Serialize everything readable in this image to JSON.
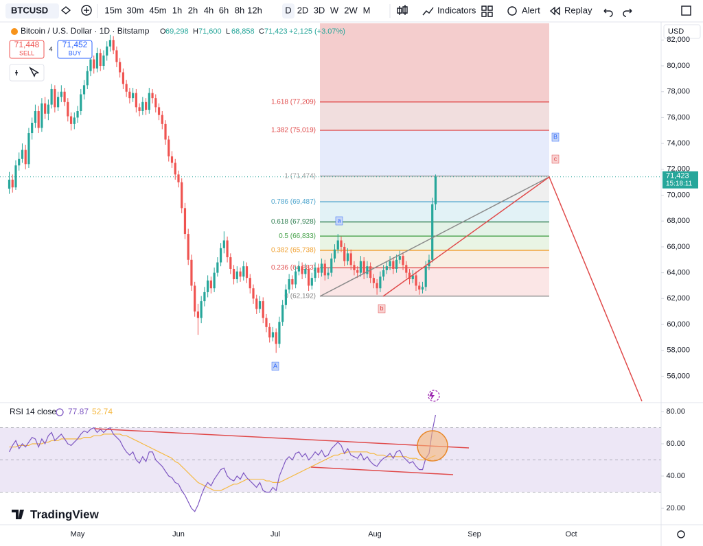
{
  "toolbar": {
    "symbol": "BTCUSD",
    "timeframes": [
      "15m",
      "30m",
      "45m",
      "1h",
      "2h",
      "4h",
      "6h",
      "8h",
      "12h",
      "D",
      "2D",
      "3D",
      "W",
      "2W",
      "M"
    ],
    "active": "D",
    "buttons": [
      "Indicators",
      "Alert",
      "Replay"
    ]
  },
  "legend": {
    "title": "Bitcoin / U.S. Dollar · 1D · Bitstamp",
    "ohlc": [
      {
        "key": "O",
        "value": "69,298"
      },
      {
        "key": "H",
        "value": "71,600"
      },
      {
        "key": "L",
        "value": "68,858"
      },
      {
        "key": "C",
        "value": "71,423"
      }
    ],
    "change": "+2,125 (+3.07%)"
  },
  "trade": {
    "sell_price": "71,448",
    "sell": "SELL",
    "spread": "4",
    "buy_price": "71,452",
    "buy": "BUY"
  },
  "currency": "USD",
  "price_chart": {
    "type": "candlestick",
    "up_color": "#26a69a",
    "down_color": "#ef5350",
    "ylim": [
      54060,
      83290
    ],
    "yticks": [
      {
        "value": 56000,
        "label": "56,000"
      },
      {
        "value": 58000,
        "label": "58,000"
      },
      {
        "value": 60000,
        "label": "60,000"
      },
      {
        "value": 62000,
        "label": "62,000"
      },
      {
        "value": 64000,
        "label": "64,000"
      },
      {
        "value": 66000,
        "label": "66,000"
      },
      {
        "value": 68000,
        "label": "68,000"
      },
      {
        "value": 70000,
        "label": "70,000"
      },
      {
        "value": 72000,
        "label": "72,000"
      },
      {
        "value": 74000,
        "label": "74,000"
      },
      {
        "value": 76000,
        "label": "76,000"
      },
      {
        "value": 78000,
        "label": "78,000"
      },
      {
        "value": 80000,
        "label": "80,000"
      },
      {
        "value": 82000,
        "label": "82,000"
      }
    ],
    "last_price": {
      "value": 71423,
      "label": "71,423",
      "countdown": "15:18:11"
    },
    "candles": [
      [
        70500,
        71800,
        70100,
        71200
      ],
      [
        71200,
        71600,
        70200,
        70600
      ],
      [
        70600,
        72700,
        70400,
        72300
      ],
      [
        72300,
        73300,
        71900,
        72800
      ],
      [
        72800,
        74000,
        72500,
        73500
      ],
      [
        73500,
        73900,
        72000,
        72400
      ],
      [
        72400,
        75200,
        72100,
        74800
      ],
      [
        74800,
        76000,
        74300,
        75600
      ],
      [
        75600,
        77000,
        75200,
        76500
      ],
      [
        76500,
        76900,
        74800,
        75200
      ],
      [
        75200,
        77500,
        74900,
        77100
      ],
      [
        77100,
        77600,
        75900,
        76300
      ],
      [
        76300,
        77400,
        75800,
        77000
      ],
      [
        77000,
        78600,
        76700,
        78200
      ],
      [
        78200,
        78500,
        76400,
        76800
      ],
      [
        76800,
        78000,
        76500,
        77600
      ],
      [
        77600,
        78500,
        77200,
        78000
      ],
      [
        78000,
        78300,
        76900,
        77200
      ],
      [
        77200,
        77500,
        75700,
        76100
      ],
      [
        76100,
        76400,
        75000,
        75500
      ],
      [
        75500,
        76400,
        75100,
        76000
      ],
      [
        76000,
        76900,
        75600,
        76500
      ],
      [
        76500,
        78200,
        76200,
        77800
      ],
      [
        77800,
        78900,
        77400,
        78500
      ],
      [
        78500,
        80000,
        78200,
        79600
      ],
      [
        79600,
        80900,
        79200,
        80500
      ],
      [
        80500,
        80800,
        79400,
        79800
      ],
      [
        79800,
        81400,
        79500,
        81000
      ],
      [
        81000,
        81300,
        79600,
        80000
      ],
      [
        80000,
        81200,
        79700,
        80800
      ],
      [
        80800,
        81900,
        80400,
        81500
      ],
      [
        81500,
        82400,
        81100,
        82000
      ],
      [
        82000,
        82300,
        80900,
        81200
      ],
      [
        81200,
        81500,
        79900,
        80300
      ],
      [
        80300,
        80600,
        79100,
        79500
      ],
      [
        79500,
        79800,
        78200,
        78600
      ],
      [
        78600,
        78900,
        77600,
        78000
      ],
      [
        78000,
        78300,
        77100,
        77500
      ],
      [
        77500,
        78300,
        77200,
        77900
      ],
      [
        77900,
        78200,
        76400,
        76800
      ],
      [
        76800,
        77100,
        76100,
        76500
      ],
      [
        76500,
        77600,
        76200,
        77200
      ],
      [
        77200,
        77500,
        76200,
        76600
      ],
      [
        76600,
        78300,
        76300,
        77900
      ],
      [
        77900,
        78200,
        77100,
        77500
      ],
      [
        77500,
        77800,
        76400,
        76800
      ],
      [
        76800,
        77100,
        75800,
        76200
      ],
      [
        76200,
        76500,
        75100,
        75500
      ],
      [
        75500,
        75800,
        73900,
        74300
      ],
      [
        74300,
        74600,
        72600,
        73000
      ],
      [
        73000,
        73400,
        72100,
        72500
      ],
      [
        72500,
        72800,
        71200,
        71600
      ],
      [
        71600,
        71900,
        70600,
        71000
      ],
      [
        71000,
        71300,
        68600,
        69000
      ],
      [
        69000,
        69400,
        66600,
        67000
      ],
      [
        67000,
        67400,
        64600,
        65000
      ],
      [
        65000,
        65400,
        62600,
        63000
      ],
      [
        63000,
        63300,
        60600,
        61000
      ],
      [
        61000,
        61600,
        59200,
        60500
      ],
      [
        60500,
        62200,
        60100,
        61800
      ],
      [
        61800,
        62900,
        61400,
        62500
      ],
      [
        62500,
        63800,
        62100,
        63400
      ],
      [
        63400,
        63700,
        62400,
        62800
      ],
      [
        62800,
        64400,
        62500,
        64000
      ],
      [
        64000,
        65200,
        63700,
        64800
      ],
      [
        64800,
        66300,
        64500,
        65900
      ],
      [
        65900,
        67200,
        65500,
        66500
      ],
      [
        66500,
        66800,
        64800,
        65200
      ],
      [
        65200,
        65500,
        63900,
        64300
      ],
      [
        64300,
        64600,
        63100,
        63500
      ],
      [
        63500,
        64500,
        63200,
        64100
      ],
      [
        64100,
        64400,
        63300,
        63700
      ],
      [
        63700,
        64900,
        63400,
        64500
      ],
      [
        64500,
        64800,
        63200,
        63600
      ],
      [
        63600,
        63900,
        62400,
        62800
      ],
      [
        62800,
        63100,
        61600,
        62000
      ],
      [
        62000,
        62300,
        60800,
        61200
      ],
      [
        61200,
        62200,
        60900,
        61800
      ],
      [
        61800,
        62100,
        60100,
        60500
      ],
      [
        60500,
        60800,
        59400,
        59800
      ],
      [
        59800,
        60100,
        58600,
        59000
      ],
      [
        59000,
        59800,
        58700,
        59400
      ],
      [
        59400,
        59700,
        57800,
        58500
      ],
      [
        58500,
        60600,
        58200,
        60200
      ],
      [
        60200,
        61900,
        59900,
        61500
      ],
      [
        61500,
        63100,
        61200,
        62700
      ],
      [
        62700,
        63900,
        62400,
        63500
      ],
      [
        63500,
        63800,
        62700,
        63100
      ],
      [
        63100,
        64500,
        62800,
        64100
      ],
      [
        64100,
        64900,
        63800,
        64500
      ],
      [
        64500,
        64800,
        63500,
        63900
      ],
      [
        63900,
        64700,
        63600,
        64300
      ],
      [
        64300,
        64600,
        62600,
        63000
      ],
      [
        63000,
        64000,
        62700,
        63600
      ],
      [
        63600,
        64800,
        63300,
        64400
      ],
      [
        64400,
        64700,
        63600,
        64000
      ],
      [
        64000,
        65100,
        63700,
        64700
      ],
      [
        64700,
        65000,
        63400,
        63800
      ],
      [
        63800,
        64400,
        63500,
        64000
      ],
      [
        64000,
        65500,
        63700,
        65100
      ],
      [
        65100,
        66200,
        64800,
        65800
      ],
      [
        65800,
        67000,
        65500,
        66500
      ],
      [
        66500,
        66800,
        65600,
        66000
      ],
      [
        66000,
        66300,
        64500,
        64900
      ],
      [
        64900,
        65900,
        64600,
        65500
      ],
      [
        65500,
        65800,
        64200,
        64600
      ],
      [
        64600,
        64900,
        63800,
        64200
      ],
      [
        64200,
        64500,
        63600,
        64000
      ],
      [
        64000,
        65300,
        63700,
        64900
      ],
      [
        64900,
        65200,
        63500,
        63900
      ],
      [
        63900,
        64900,
        63600,
        64500
      ],
      [
        64500,
        64800,
        63200,
        63600
      ],
      [
        63600,
        63900,
        62800,
        63200
      ],
      [
        63200,
        63500,
        62300,
        62800
      ],
      [
        62800,
        64100,
        62500,
        63700
      ],
      [
        63700,
        64600,
        63400,
        64200
      ],
      [
        64200,
        64900,
        63900,
        64500
      ],
      [
        64500,
        65300,
        64200,
        64900
      ],
      [
        64900,
        65200,
        63900,
        64300
      ],
      [
        64300,
        65400,
        64000,
        65000
      ],
      [
        65000,
        65700,
        64700,
        65300
      ],
      [
        65300,
        65600,
        64200,
        64600
      ],
      [
        64600,
        64900,
        63600,
        64000
      ],
      [
        64000,
        64300,
        63100,
        63500
      ],
      [
        63500,
        64200,
        63200,
        63800
      ],
      [
        63800,
        64100,
        62600,
        63000
      ],
      [
        63000,
        63300,
        62300,
        62700
      ],
      [
        62700,
        63300,
        62400,
        62900
      ],
      [
        62900,
        64900,
        62600,
        64500
      ],
      [
        64500,
        65400,
        64200,
        65000
      ],
      [
        65000,
        69800,
        64800,
        69298
      ],
      [
        69298,
        71600,
        68858,
        71423
      ]
    ]
  },
  "fib": {
    "top_fill": "#f4cdcd",
    "levels": [
      {
        "label": "1.618 (77,209)",
        "price": 77209,
        "color": "#e04a4a",
        "fill": "#f1dede"
      },
      {
        "label": "1.382 (75,019)",
        "price": 75019,
        "color": "#e04a4a",
        "fill": "#e6ebfb"
      },
      {
        "label": "1 (71,474)",
        "price": 71474,
        "color": "#9e9e9e",
        "fill": "#efefef"
      },
      {
        "label": "0.786 (69,487)",
        "price": 69487,
        "color": "#4aa3cc",
        "fill": "#e2f2f6"
      },
      {
        "label": "0.618 (67,928)",
        "price": 67928,
        "color": "#2e7d4f",
        "fill": "#e4f2e7"
      },
      {
        "label": "0.5 (66,833)",
        "price": 66833,
        "color": "#43a047",
        "fill": "#e9f4e4"
      },
      {
        "label": "0.382 (65,738)",
        "price": 65738,
        "color": "#f0a030",
        "fill": "#f9eee2"
      },
      {
        "label": "0.236 (64,383)",
        "price": 64383,
        "color": "#e05050",
        "fill": "#fbe6e6"
      },
      {
        "label": "0 (62,192)",
        "price": 62192,
        "color": "#888888",
        "fill": "#ffffff"
      }
    ]
  },
  "points": [
    "A",
    "B",
    "c",
    "a",
    "b"
  ],
  "rsi": {
    "title": "RSI 14 close",
    "value_label": "77.87",
    "ma_label": "52.74",
    "color": "#7e57c2",
    "ma_color": "#f5b942",
    "band_fill": "#ede7f6",
    "ylim": [
      9.8,
      85.1
    ],
    "yticks": [
      {
        "value": 20,
        "label": "20.00"
      },
      {
        "value": 40,
        "label": "40.00"
      },
      {
        "value": 60,
        "label": "60.00"
      },
      {
        "value": 80,
        "label": "80.00"
      }
    ],
    "bands": [
      70,
      50,
      30
    ],
    "values": [
      55,
      59,
      62,
      57,
      60,
      58,
      61,
      64,
      63,
      58,
      63,
      60,
      65,
      67,
      62,
      64,
      66,
      63,
      60,
      59,
      61,
      63,
      66,
      68,
      67,
      69,
      70,
      67,
      69,
      67,
      69,
      70,
      66,
      64,
      62,
      58,
      55,
      53,
      55,
      50,
      48,
      52,
      49,
      55,
      55,
      50,
      48,
      46,
      43,
      40,
      39,
      36,
      35,
      31,
      28,
      24,
      20,
      18,
      22,
      28,
      33,
      36,
      34,
      38,
      41,
      44,
      45,
      40,
      38,
      37,
      40,
      38,
      42,
      39,
      37,
      35,
      33,
      36,
      31,
      30,
      30,
      33,
      31,
      40,
      45,
      50,
      52,
      50,
      54,
      55,
      52,
      54,
      50,
      52,
      55,
      53,
      56,
      52,
      53,
      57,
      59,
      61,
      59,
      54,
      57,
      53,
      52,
      51,
      54,
      50,
      52,
      49,
      47,
      46,
      49,
      51,
      52,
      54,
      51,
      55,
      56,
      52,
      50,
      48,
      49,
      46,
      44,
      44,
      51,
      54,
      68,
      77.87
    ],
    "ma": [
      58,
      58,
      58,
      59,
      59,
      59,
      59,
      60,
      60,
      60,
      60,
      61,
      61,
      62,
      62,
      62,
      63,
      63,
      63,
      63,
      63,
      63,
      63,
      64,
      64,
      64,
      65,
      65,
      65,
      66,
      66,
      66,
      66,
      66,
      66,
      65,
      65,
      64,
      63,
      62,
      61,
      60,
      59,
      58,
      57,
      56,
      55,
      54,
      53,
      52,
      51,
      49,
      48,
      46,
      44,
      42,
      40,
      38,
      36,
      35,
      34,
      33,
      32,
      31,
      31,
      31,
      32,
      33,
      34,
      35,
      35,
      36,
      37,
      38,
      38,
      38,
      38,
      38,
      38,
      37,
      37,
      36,
      36,
      36,
      37,
      38,
      39,
      40,
      41,
      42,
      43,
      44,
      45,
      46,
      47,
      48,
      49,
      50,
      51,
      52,
      53,
      53,
      54,
      54,
      55,
      55,
      55,
      55,
      55,
      55,
      55,
      54,
      54,
      53,
      53,
      53,
      52,
      52,
      52,
      52,
      52,
      52,
      52,
      51,
      51,
      51,
      50,
      50,
      50,
      51,
      52,
      52.74
    ]
  },
  "time_axis": [
    "May",
    "Jun",
    "Jul",
    "Aug",
    "Sep",
    "Oct"
  ],
  "brand": "TradingView"
}
